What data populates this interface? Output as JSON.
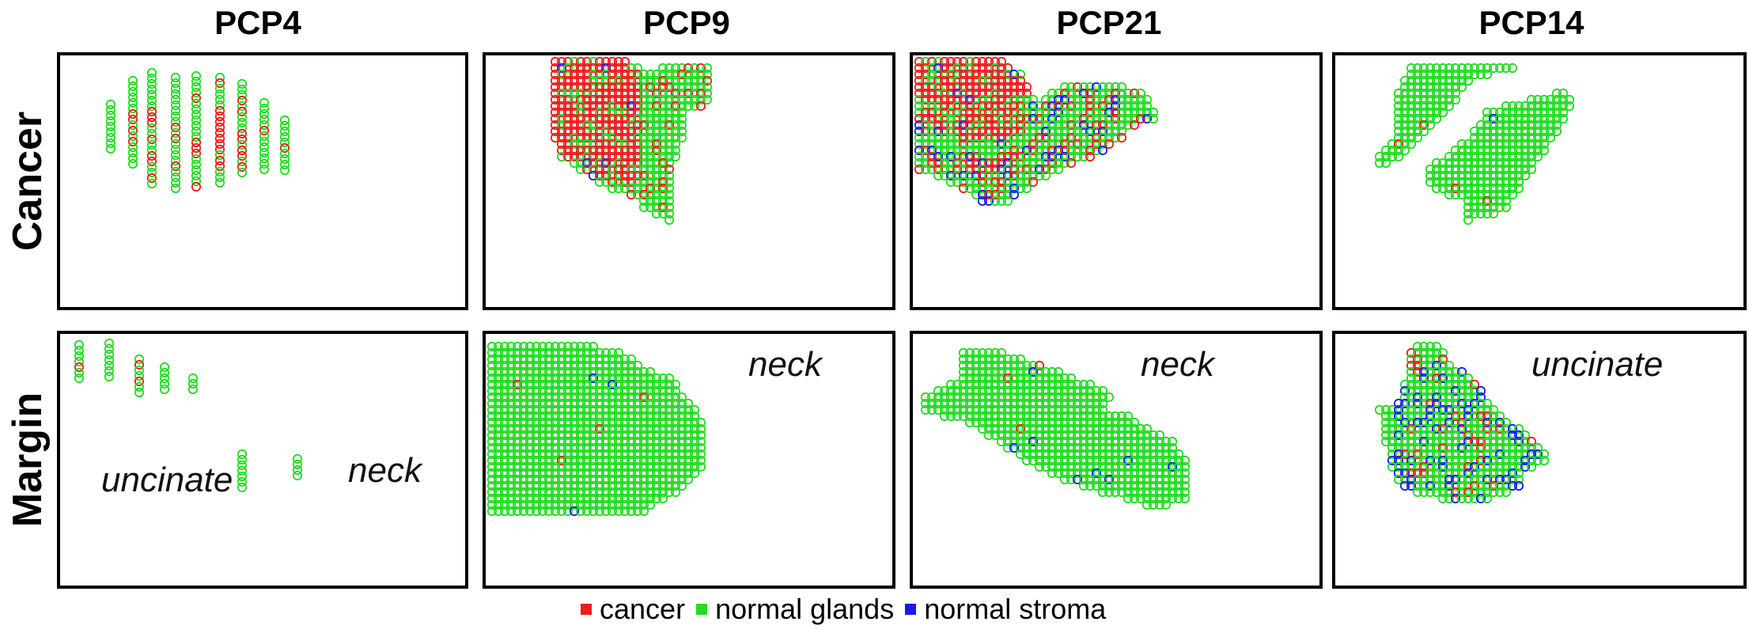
{
  "column_titles": [
    "PCP4",
    "PCP9",
    "PCP21",
    "PCP14"
  ],
  "row_labels": [
    "Cancer",
    "Margin"
  ],
  "panel_labels": {
    "pcp4_margin": [
      "uncinate",
      "neck"
    ],
    "pcp9_margin": [
      "neck"
    ],
    "pcp21_margin": [
      "neck"
    ],
    "pcp14_margin": [
      "uncinate"
    ]
  },
  "legend": [
    {
      "label": "cancer",
      "color": "#ee1c1c"
    },
    {
      "label": "normal glands",
      "color": "#22dd22"
    },
    {
      "label": "normal stroma",
      "color": "#1a1aee"
    }
  ],
  "colors": {
    "cancer": "#ee1c1c",
    "normal_glands": "#22dd22",
    "normal_stroma": "#1a1aee"
  }
}
